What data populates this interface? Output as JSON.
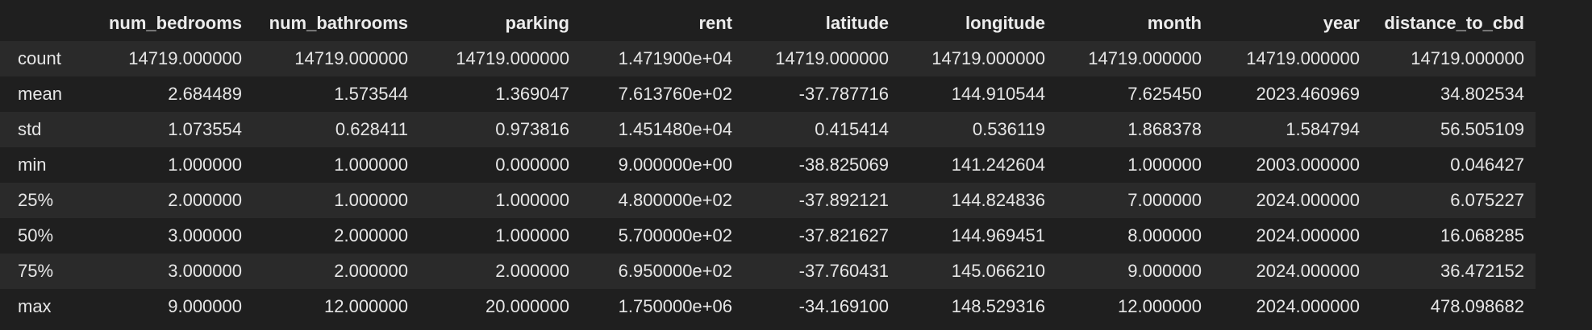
{
  "table": {
    "columns": [
      "",
      "num_bedrooms",
      "num_bathrooms",
      "parking",
      "rent",
      "latitude",
      "longitude",
      "month",
      "year",
      "distance_to_cbd"
    ],
    "rows": [
      [
        "count",
        "14719.000000",
        "14719.000000",
        "14719.000000",
        "1.471900e+04",
        "14719.000000",
        "14719.000000",
        "14719.000000",
        "14719.000000",
        "14719.000000"
      ],
      [
        "mean",
        "2.684489",
        "1.573544",
        "1.369047",
        "7.613760e+02",
        "-37.787716",
        "144.910544",
        "7.625450",
        "2023.460969",
        "34.802534"
      ],
      [
        "std",
        "1.073554",
        "0.628411",
        "0.973816",
        "1.451480e+04",
        "0.415414",
        "0.536119",
        "1.868378",
        "1.584794",
        "56.505109"
      ],
      [
        "min",
        "1.000000",
        "1.000000",
        "0.000000",
        "9.000000e+00",
        "-38.825069",
        "141.242604",
        "1.000000",
        "2003.000000",
        "0.046427"
      ],
      [
        "25%",
        "2.000000",
        "1.000000",
        "1.000000",
        "4.800000e+02",
        "-37.892121",
        "144.824836",
        "7.000000",
        "2024.000000",
        "6.075227"
      ],
      [
        "50%",
        "3.000000",
        "2.000000",
        "1.000000",
        "5.700000e+02",
        "-37.821627",
        "144.969451",
        "8.000000",
        "2024.000000",
        "16.068285"
      ],
      [
        "75%",
        "3.000000",
        "2.000000",
        "2.000000",
        "6.950000e+02",
        "-37.760431",
        "145.066210",
        "9.000000",
        "2024.000000",
        "36.472152"
      ],
      [
        "max",
        "9.000000",
        "12.000000",
        "20.000000",
        "1.750000e+06",
        "-34.169100",
        "148.529316",
        "12.000000",
        "2024.000000",
        "478.098682"
      ]
    ]
  },
  "colors": {
    "background": "#1f1f1f",
    "stripe": "#2a2a2a",
    "text": "#e6e6e6"
  }
}
